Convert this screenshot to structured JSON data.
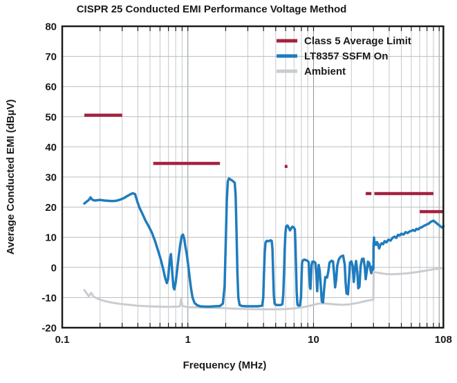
{
  "chart_data": {
    "type": "line",
    "title": "CISPR 25 Conducted EMI Performance Voltage Method",
    "xlabel": "Frequency (MHz)",
    "ylabel": "Average Conducted EMI (dBµV)",
    "x_scale": "log",
    "xlim": [
      0.1,
      108
    ],
    "ylim": [
      -20,
      80
    ],
    "grid": true,
    "legend_position": "top-right",
    "y_ticks": [
      -20,
      -10,
      0,
      10,
      20,
      30,
      40,
      50,
      60,
      70,
      80
    ],
    "x_ticks": [
      {
        "value": 0.1,
        "label": "0.1"
      },
      {
        "value": 1,
        "label": "1"
      },
      {
        "value": 10,
        "label": "10"
      },
      {
        "value": 108,
        "label": "108"
      }
    ],
    "colors": {
      "limit": "#A32240",
      "ssfm": "#1F7CBE",
      "ambient": "#C9CCD1",
      "grid_minor": "#c5c8cb",
      "grid_major": "#8d9298",
      "grid_h": "#b8bcbf",
      "frame": "#1a1a1a",
      "text": "#1a1a1a"
    },
    "series": [
      {
        "name": "Class 5 Average Limit",
        "color_key": "limit",
        "style": "segments",
        "line_width": 4.5,
        "segments": [
          [
            0.15,
            0.3,
            50.5
          ],
          [
            0.53,
            1.8,
            34.5
          ],
          [
            5.9,
            6.2,
            33.5
          ],
          [
            26.0,
            28.9,
            24.5
          ],
          [
            30.5,
            90.0,
            24.5
          ],
          [
            70.0,
            108.0,
            18.5
          ]
        ]
      },
      {
        "name": "LT8357 SSFM On",
        "color_key": "ssfm",
        "style": "line",
        "line_width": 3.5,
        "points": [
          [
            0.15,
            21.2
          ],
          [
            0.156,
            21.8
          ],
          [
            0.163,
            22.4
          ],
          [
            0.168,
            23.2
          ],
          [
            0.173,
            22.5
          ],
          [
            0.18,
            22.2
          ],
          [
            0.19,
            22.3
          ],
          [
            0.2,
            22.4
          ],
          [
            0.215,
            22.2
          ],
          [
            0.23,
            22.1
          ],
          [
            0.25,
            22.0
          ],
          [
            0.27,
            22.1
          ],
          [
            0.29,
            22.5
          ],
          [
            0.31,
            23.0
          ],
          [
            0.33,
            23.7
          ],
          [
            0.35,
            24.3
          ],
          [
            0.365,
            24.6
          ],
          [
            0.38,
            24.3
          ],
          [
            0.395,
            22.0
          ],
          [
            0.41,
            20.0
          ],
          [
            0.43,
            18.2
          ],
          [
            0.46,
            15.5
          ],
          [
            0.49,
            13.5
          ],
          [
            0.52,
            11.3
          ],
          [
            0.55,
            8.5
          ],
          [
            0.58,
            5.5
          ],
          [
            0.61,
            2.5
          ],
          [
            0.64,
            -1.0
          ],
          [
            0.66,
            -3.5
          ],
          [
            0.68,
            -5.2
          ],
          [
            0.695,
            -4.0
          ],
          [
            0.71,
            0.5
          ],
          [
            0.725,
            3.5
          ],
          [
            0.733,
            4.4
          ],
          [
            0.742,
            1.5
          ],
          [
            0.755,
            -3.0
          ],
          [
            0.768,
            -6.5
          ],
          [
            0.78,
            -7.3
          ],
          [
            0.8,
            -5.0
          ],
          [
            0.82,
            -1.0
          ],
          [
            0.845,
            3.5
          ],
          [
            0.87,
            7.5
          ],
          [
            0.895,
            10.5
          ],
          [
            0.915,
            10.9
          ],
          [
            0.935,
            9.5
          ],
          [
            0.955,
            7.0
          ],
          [
            0.98,
            4.5
          ],
          [
            1.005,
            1.0
          ],
          [
            1.03,
            -3.0
          ],
          [
            1.06,
            -7.0
          ],
          [
            1.09,
            -10.0
          ],
          [
            1.13,
            -11.8
          ],
          [
            1.18,
            -12.5
          ],
          [
            1.25,
            -12.9
          ],
          [
            1.35,
            -13.0
          ],
          [
            1.5,
            -13.0
          ],
          [
            1.65,
            -12.9
          ],
          [
            1.8,
            -12.8
          ],
          [
            1.9,
            -12.0
          ],
          [
            1.96,
            -6.0
          ],
          [
            2.0,
            8.0
          ],
          [
            2.04,
            22.0
          ],
          [
            2.08,
            28.5
          ],
          [
            2.12,
            29.5
          ],
          [
            2.2,
            29.1
          ],
          [
            2.3,
            28.5
          ],
          [
            2.36,
            28.1
          ],
          [
            2.4,
            24.0
          ],
          [
            2.44,
            12.0
          ],
          [
            2.48,
            -2.0
          ],
          [
            2.52,
            -10.0
          ],
          [
            2.58,
            -12.5
          ],
          [
            2.7,
            -12.8
          ],
          [
            2.9,
            -12.9
          ],
          [
            3.2,
            -12.9
          ],
          [
            3.6,
            -12.9
          ],
          [
            3.9,
            -12.7
          ],
          [
            3.98,
            -10.0
          ],
          [
            4.03,
            -2.0
          ],
          [
            4.09,
            5.0
          ],
          [
            4.15,
            8.3
          ],
          [
            4.25,
            8.8
          ],
          [
            4.4,
            8.7
          ],
          [
            4.55,
            9.0
          ],
          [
            4.65,
            8.8
          ],
          [
            4.71,
            6.0
          ],
          [
            4.77,
            -2.0
          ],
          [
            4.83,
            -9.0
          ],
          [
            4.9,
            -12.0
          ],
          [
            5.0,
            -12.4
          ],
          [
            5.2,
            -12.5
          ],
          [
            5.45,
            -12.5
          ],
          [
            5.65,
            -12.2
          ],
          [
            5.74,
            -9.0
          ],
          [
            5.82,
            -2.0
          ],
          [
            5.9,
            6.0
          ],
          [
            5.98,
            11.5
          ],
          [
            6.06,
            13.6
          ],
          [
            6.2,
            13.9
          ],
          [
            6.35,
            13.2
          ],
          [
            6.5,
            12.3
          ],
          [
            6.65,
            13.0
          ],
          [
            6.8,
            13.5
          ],
          [
            6.95,
            13.3
          ],
          [
            7.1,
            12.6
          ],
          [
            7.18,
            8.0
          ],
          [
            7.26,
            0.0
          ],
          [
            7.34,
            -8.0
          ],
          [
            7.45,
            -12.3
          ],
          [
            7.6,
            -12.7
          ],
          [
            7.8,
            -12.6
          ],
          [
            7.95,
            -10.0
          ],
          [
            8.03,
            -3.0
          ],
          [
            8.1,
            1.5
          ],
          [
            8.2,
            2.3
          ],
          [
            8.45,
            2.6
          ],
          [
            8.7,
            2.4
          ],
          [
            8.95,
            2.2
          ],
          [
            9.15,
            1.7
          ],
          [
            9.25,
            -2.0
          ],
          [
            9.35,
            -6.5
          ],
          [
            9.45,
            -7.1
          ],
          [
            9.55,
            -3.5
          ],
          [
            9.65,
            0.8
          ],
          [
            9.8,
            1.9
          ],
          [
            10.1,
            1.9
          ],
          [
            10.35,
            1.5
          ],
          [
            10.55,
            -2.5
          ],
          [
            10.7,
            -7.9
          ],
          [
            10.85,
            -2.0
          ],
          [
            11.0,
            0.8
          ],
          [
            11.2,
            -1.0
          ],
          [
            11.45,
            -7.0
          ],
          [
            11.65,
            -11.3
          ],
          [
            11.9,
            -11.6
          ],
          [
            12.15,
            -7.0
          ],
          [
            12.4,
            -3.2
          ],
          [
            12.8,
            -3.4
          ],
          [
            13.1,
            -1.5
          ],
          [
            13.4,
            1.6
          ],
          [
            13.9,
            2.2
          ],
          [
            14.3,
            2.0
          ],
          [
            14.6,
            -2.5
          ],
          [
            14.85,
            -6.6
          ],
          [
            15.15,
            -4.0
          ],
          [
            15.45,
            0.6
          ],
          [
            15.9,
            2.7
          ],
          [
            16.5,
            3.6
          ],
          [
            17.2,
            3.9
          ],
          [
            17.7,
            1.0
          ],
          [
            18.0,
            -5.0
          ],
          [
            18.3,
            -8.6
          ],
          [
            18.8,
            -8.9
          ],
          [
            19.2,
            -3.0
          ],
          [
            19.5,
            1.6
          ],
          [
            20.0,
            2.0
          ],
          [
            20.5,
            0.5
          ],
          [
            20.9,
            -4.8
          ],
          [
            21.3,
            -1.0
          ],
          [
            21.8,
            2.1
          ],
          [
            22.3,
            -1.5
          ],
          [
            22.7,
            -6.9
          ],
          [
            23.2,
            -6.4
          ],
          [
            23.7,
            0.5
          ],
          [
            24.3,
            2.8
          ],
          [
            25.0,
            2.9
          ],
          [
            25.6,
            0.0
          ],
          [
            26.0,
            -3.9
          ],
          [
            26.6,
            -1.0
          ],
          [
            27.1,
            1.9
          ],
          [
            27.8,
            1.4
          ],
          [
            28.3,
            -0.5
          ],
          [
            28.8,
            -1.9
          ],
          [
            29.3,
            0.2
          ],
          [
            29.7,
            -0.8
          ],
          [
            29.95,
            -0.5
          ],
          [
            30.05,
            7.6
          ],
          [
            30.3,
            9.9
          ],
          [
            30.6,
            7.5
          ],
          [
            31.0,
            8.3
          ],
          [
            31.5,
            7.5
          ],
          [
            32.0,
            8.4
          ],
          [
            32.6,
            7.7
          ],
          [
            33.3,
            6.3
          ],
          [
            34.0,
            7.4
          ],
          [
            34.8,
            8.0
          ],
          [
            35.8,
            7.7
          ],
          [
            36.8,
            8.7
          ],
          [
            38.0,
            8.3
          ],
          [
            39.5,
            9.2
          ],
          [
            41.0,
            8.9
          ],
          [
            42.5,
            9.8
          ],
          [
            44.0,
            10.2
          ],
          [
            45.5,
            9.8
          ],
          [
            47.0,
            10.8
          ],
          [
            48.5,
            10.6
          ],
          [
            50.0,
            11.2
          ],
          [
            52.0,
            10.9
          ],
          [
            54.0,
            11.7
          ],
          [
            56.0,
            11.4
          ],
          [
            58.0,
            11.9
          ],
          [
            60.0,
            12.1
          ],
          [
            62.0,
            12.4
          ],
          [
            64.0,
            12.1
          ],
          [
            66.0,
            12.8
          ],
          [
            68.0,
            12.6
          ],
          [
            70.0,
            13.1
          ],
          [
            72.5,
            13.3
          ],
          [
            75.0,
            13.7
          ],
          [
            77.5,
            14.0
          ],
          [
            80.0,
            14.3
          ],
          [
            82.5,
            14.5
          ],
          [
            85.0,
            15.0
          ],
          [
            87.5,
            15.3
          ],
          [
            90.0,
            15.5
          ],
          [
            92.0,
            15.2
          ],
          [
            94.5,
            14.8
          ],
          [
            97.0,
            14.4
          ],
          [
            100.0,
            14.0
          ],
          [
            103.0,
            13.5
          ],
          [
            105.5,
            13.2
          ],
          [
            108.0,
            13.7
          ]
        ]
      },
      {
        "name": "Ambient",
        "color_key": "ambient",
        "style": "line",
        "line_width": 3,
        "points": [
          [
            0.15,
            -7.5
          ],
          [
            0.157,
            -8.7
          ],
          [
            0.163,
            -9.6
          ],
          [
            0.17,
            -8.4
          ],
          [
            0.178,
            -9.7
          ],
          [
            0.188,
            -10.2
          ],
          [
            0.2,
            -10.7
          ],
          [
            0.22,
            -11.2
          ],
          [
            0.25,
            -11.7
          ],
          [
            0.29,
            -12.1
          ],
          [
            0.34,
            -12.4
          ],
          [
            0.4,
            -12.7
          ],
          [
            0.48,
            -12.9
          ],
          [
            0.58,
            -13.0
          ],
          [
            0.7,
            -13.1
          ],
          [
            0.82,
            -13.0
          ],
          [
            0.865,
            -12.9
          ],
          [
            0.885,
            -10.5
          ],
          [
            0.905,
            -12.8
          ],
          [
            1.0,
            -13.2
          ],
          [
            1.2,
            -13.3
          ],
          [
            1.5,
            -13.4
          ],
          [
            1.9,
            -13.5
          ],
          [
            2.4,
            -13.7
          ],
          [
            3.0,
            -13.8
          ],
          [
            4.0,
            -13.9
          ],
          [
            5.0,
            -13.9
          ],
          [
            6.0,
            -13.8
          ],
          [
            7.0,
            -13.6
          ],
          [
            8.0,
            -13.3
          ],
          [
            9.0,
            -12.9
          ],
          [
            10.0,
            -12.4
          ],
          [
            11.0,
            -12.0
          ],
          [
            12.0,
            -11.9
          ],
          [
            13.5,
            -12.1
          ],
          [
            15.0,
            -12.3
          ],
          [
            17.0,
            -12.4
          ],
          [
            19.0,
            -12.3
          ],
          [
            21.0,
            -12.0
          ],
          [
            23.0,
            -11.7
          ],
          [
            25.0,
            -11.3
          ],
          [
            27.0,
            -11.0
          ],
          [
            29.0,
            -10.8
          ],
          [
            29.95,
            -10.7
          ],
          [
            30.05,
            -1.5
          ],
          [
            31.0,
            -1.6
          ],
          [
            33.0,
            -1.8
          ],
          [
            35.0,
            -2.0
          ],
          [
            38.0,
            -2.2
          ],
          [
            42.0,
            -2.3
          ],
          [
            46.0,
            -2.2
          ],
          [
            50.0,
            -2.1
          ],
          [
            55.0,
            -2.0
          ],
          [
            60.0,
            -1.8
          ],
          [
            65.0,
            -1.6
          ],
          [
            70.0,
            -1.4
          ],
          [
            75.0,
            -1.2
          ],
          [
            80.0,
            -1.0
          ],
          [
            85.0,
            -0.8
          ],
          [
            90.0,
            -0.6
          ],
          [
            95.0,
            -0.5
          ],
          [
            100.0,
            -0.4
          ],
          [
            104.0,
            -0.3
          ],
          [
            108.0,
            -0.2
          ]
        ]
      }
    ]
  }
}
